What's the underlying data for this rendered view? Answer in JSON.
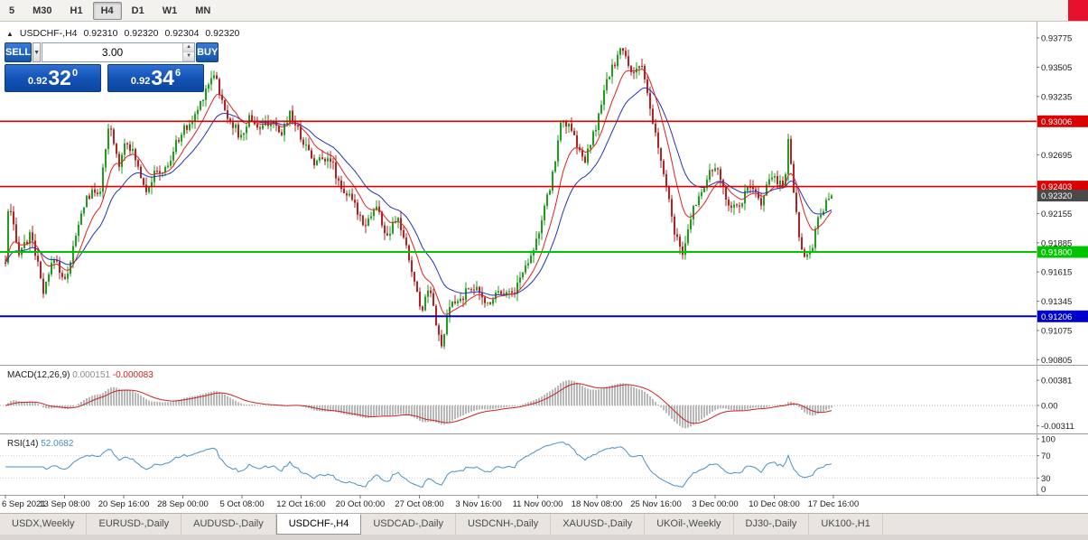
{
  "toolbar": {
    "timeframes": [
      "5",
      "M30",
      "H1",
      "H4",
      "D1",
      "W1",
      "MN"
    ],
    "selected": "H4"
  },
  "chart_header": {
    "direction_icon": "▲",
    "symbol": "USDCHF-,H4",
    "open": "0.92310",
    "high": "0.92320",
    "low": "0.92304",
    "close": "0.92320"
  },
  "trade_panel": {
    "sell_label": "SELL",
    "buy_label": "BUY",
    "volume": "3.00",
    "bid": {
      "prefix": "0.92",
      "big": "32",
      "sup": "0"
    },
    "ask": {
      "prefix": "0.92",
      "big": "34",
      "sup": "6"
    }
  },
  "colors": {
    "bull": "#1f9d1f",
    "bear": "#b22222",
    "ma_fast": "#e02020",
    "ma_slow": "#2233bb",
    "macd_histogram": "#b9b9b9",
    "macd_signal": "#cc2222",
    "rsi_line": "#4a90c4",
    "background": "#ffffff",
    "panel_blue": "#1251b4",
    "red_block": "#e8112d"
  },
  "chart_data": {
    "type": "candlestick",
    "symbol": "USDCHF-",
    "timeframe": "H4",
    "candle_count": 306,
    "last_close": 0.9232,
    "y_range": [
      0.9075,
      0.939
    ],
    "price_axis_labels": [
      "0.93775",
      "0.93505",
      "0.93235",
      "0.92695",
      "0.92155",
      "0.91885",
      "0.91615",
      "0.91345",
      "0.91075",
      "0.90805"
    ],
    "levels": [
      {
        "label": "0.93006",
        "value": 0.93006,
        "color": "#dd0000"
      },
      {
        "label": "0.92403",
        "value": 0.92403,
        "color": "#dd0000"
      },
      {
        "label": "0.91800",
        "value": 0.918,
        "color": "#00c400"
      },
      {
        "label": "0.91206",
        "value": 0.91206,
        "color": "#0000cd"
      }
    ],
    "current_price": {
      "label": "0.92320",
      "value": 0.9232,
      "bg": "#4a4a4a"
    },
    "overlays": [
      {
        "name": "moving-average-fast",
        "period": 10,
        "color": "#e02020"
      },
      {
        "name": "moving-average-slow",
        "period": 22,
        "color": "#2233bb"
      }
    ],
    "macd": {
      "title": "MACD(12,26,9)",
      "value_main": "0.000151",
      "value_signal": "-0.000083",
      "params": [
        12,
        26,
        9
      ],
      "axis": [
        {
          "label": "0.00381",
          "value": 0.00381
        },
        {
          "label": "0.00",
          "value": 0
        },
        {
          "label": "-0.00311",
          "value": -0.00311
        }
      ]
    },
    "rsi": {
      "title": "RSI(14)",
      "value": "52.0682",
      "params": [
        14
      ],
      "levels": [
        70,
        30
      ],
      "axis_labels": [
        "100",
        "70",
        "30",
        "0"
      ]
    },
    "x_labels": [
      "6 Sep 2021",
      "13 Sep 08:00",
      "20 Sep 16:00",
      "28 Sep 00:00",
      "5 Oct 08:00",
      "12 Oct 16:00",
      "20 Oct 00:00",
      "27 Oct 08:00",
      "3 Nov 16:00",
      "11 Nov 00:00",
      "18 Nov 08:00",
      "25 Nov 16:00",
      "3 Dec 00:00",
      "10 Dec 08:00",
      "17 Dec 16:00"
    ],
    "close_waypoints": [
      [
        0.0,
        0.917
      ],
      [
        0.004,
        0.9225
      ],
      [
        0.015,
        0.918
      ],
      [
        0.032,
        0.9196
      ],
      [
        0.046,
        0.914
      ],
      [
        0.059,
        0.9176
      ],
      [
        0.072,
        0.9152
      ],
      [
        0.097,
        0.923
      ],
      [
        0.115,
        0.9238
      ],
      [
        0.126,
        0.9298
      ],
      [
        0.137,
        0.926
      ],
      [
        0.146,
        0.9286
      ],
      [
        0.159,
        0.9262
      ],
      [
        0.17,
        0.9238
      ],
      [
        0.181,
        0.9252
      ],
      [
        0.195,
        0.9256
      ],
      [
        0.211,
        0.9288
      ],
      [
        0.228,
        0.9302
      ],
      [
        0.242,
        0.933
      ],
      [
        0.253,
        0.9347
      ],
      [
        0.264,
        0.9312
      ],
      [
        0.274,
        0.93
      ],
      [
        0.285,
        0.9284
      ],
      [
        0.296,
        0.9306
      ],
      [
        0.309,
        0.9292
      ],
      [
        0.32,
        0.9302
      ],
      [
        0.333,
        0.9286
      ],
      [
        0.344,
        0.931
      ],
      [
        0.358,
        0.9286
      ],
      [
        0.375,
        0.9262
      ],
      [
        0.391,
        0.927
      ],
      [
        0.405,
        0.9242
      ],
      [
        0.42,
        0.9226
      ],
      [
        0.435,
        0.9206
      ],
      [
        0.449,
        0.9222
      ],
      [
        0.462,
        0.9192
      ],
      [
        0.475,
        0.9212
      ],
      [
        0.489,
        0.9172
      ],
      [
        0.503,
        0.9126
      ],
      [
        0.514,
        0.915
      ],
      [
        0.527,
        0.9089
      ],
      [
        0.538,
        0.913
      ],
      [
        0.551,
        0.9136
      ],
      [
        0.565,
        0.915
      ],
      [
        0.582,
        0.9131
      ],
      [
        0.598,
        0.9146
      ],
      [
        0.614,
        0.9141
      ],
      [
        0.629,
        0.9166
      ],
      [
        0.645,
        0.9196
      ],
      [
        0.66,
        0.9242
      ],
      [
        0.674,
        0.9305
      ],
      [
        0.688,
        0.9286
      ],
      [
        0.701,
        0.9262
      ],
      [
        0.715,
        0.9296
      ],
      [
        0.729,
        0.934
      ],
      [
        0.745,
        0.9368
      ],
      [
        0.758,
        0.9346
      ],
      [
        0.769,
        0.9354
      ],
      [
        0.78,
        0.9312
      ],
      [
        0.794,
        0.9262
      ],
      [
        0.808,
        0.9206
      ],
      [
        0.819,
        0.9173
      ],
      [
        0.832,
        0.922
      ],
      [
        0.845,
        0.9241
      ],
      [
        0.859,
        0.926
      ],
      [
        0.874,
        0.9226
      ],
      [
        0.887,
        0.9221
      ],
      [
        0.9,
        0.924
      ],
      [
        0.914,
        0.9226
      ],
      [
        0.928,
        0.925
      ],
      [
        0.943,
        0.9241
      ],
      [
        0.948,
        0.9289
      ],
      [
        0.952,
        0.925
      ],
      [
        0.963,
        0.9182
      ],
      [
        0.974,
        0.9176
      ],
      [
        0.985,
        0.9216
      ],
      [
        1.0,
        0.9232
      ]
    ]
  },
  "bottom_tabs": {
    "tabs": [
      {
        "label": "USDX,Weekly",
        "active": false
      },
      {
        "label": "EURUSD-,Daily",
        "active": false
      },
      {
        "label": "AUDUSD-,Daily",
        "active": false
      },
      {
        "label": "USDCHF-,H4",
        "active": true
      },
      {
        "label": "USDCAD-,Daily",
        "active": false
      },
      {
        "label": "USDCNH-,Daily",
        "active": false
      },
      {
        "label": "XAUUSD-,Daily",
        "active": false
      },
      {
        "label": "UKOil-,Weekly",
        "active": false
      },
      {
        "label": "DJ30-,Daily",
        "active": false
      },
      {
        "label": "UK100-,H1",
        "active": false
      }
    ]
  }
}
